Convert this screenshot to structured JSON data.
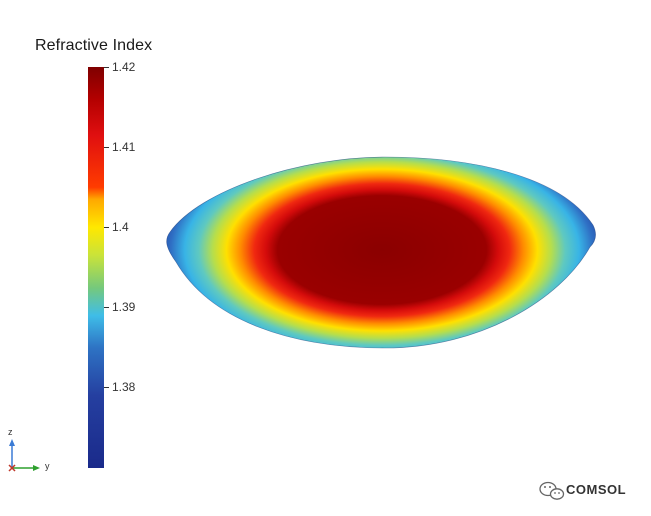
{
  "plot": {
    "title": "Refractive Index",
    "colorbar": {
      "min": 1.37,
      "max": 1.42,
      "ticks": [
        "1.42",
        "1.41",
        "1.4",
        "1.39",
        "1.38"
      ],
      "tick_values": [
        1.42,
        1.41,
        1.4,
        1.39,
        1.38
      ]
    },
    "axes": {
      "z_label": "z",
      "y_label": "y",
      "z_color": "#3a7bd5",
      "y_color": "#2ea02e"
    }
  },
  "watermark": {
    "text": "COMSOL",
    "icon": "wechat-icon"
  }
}
